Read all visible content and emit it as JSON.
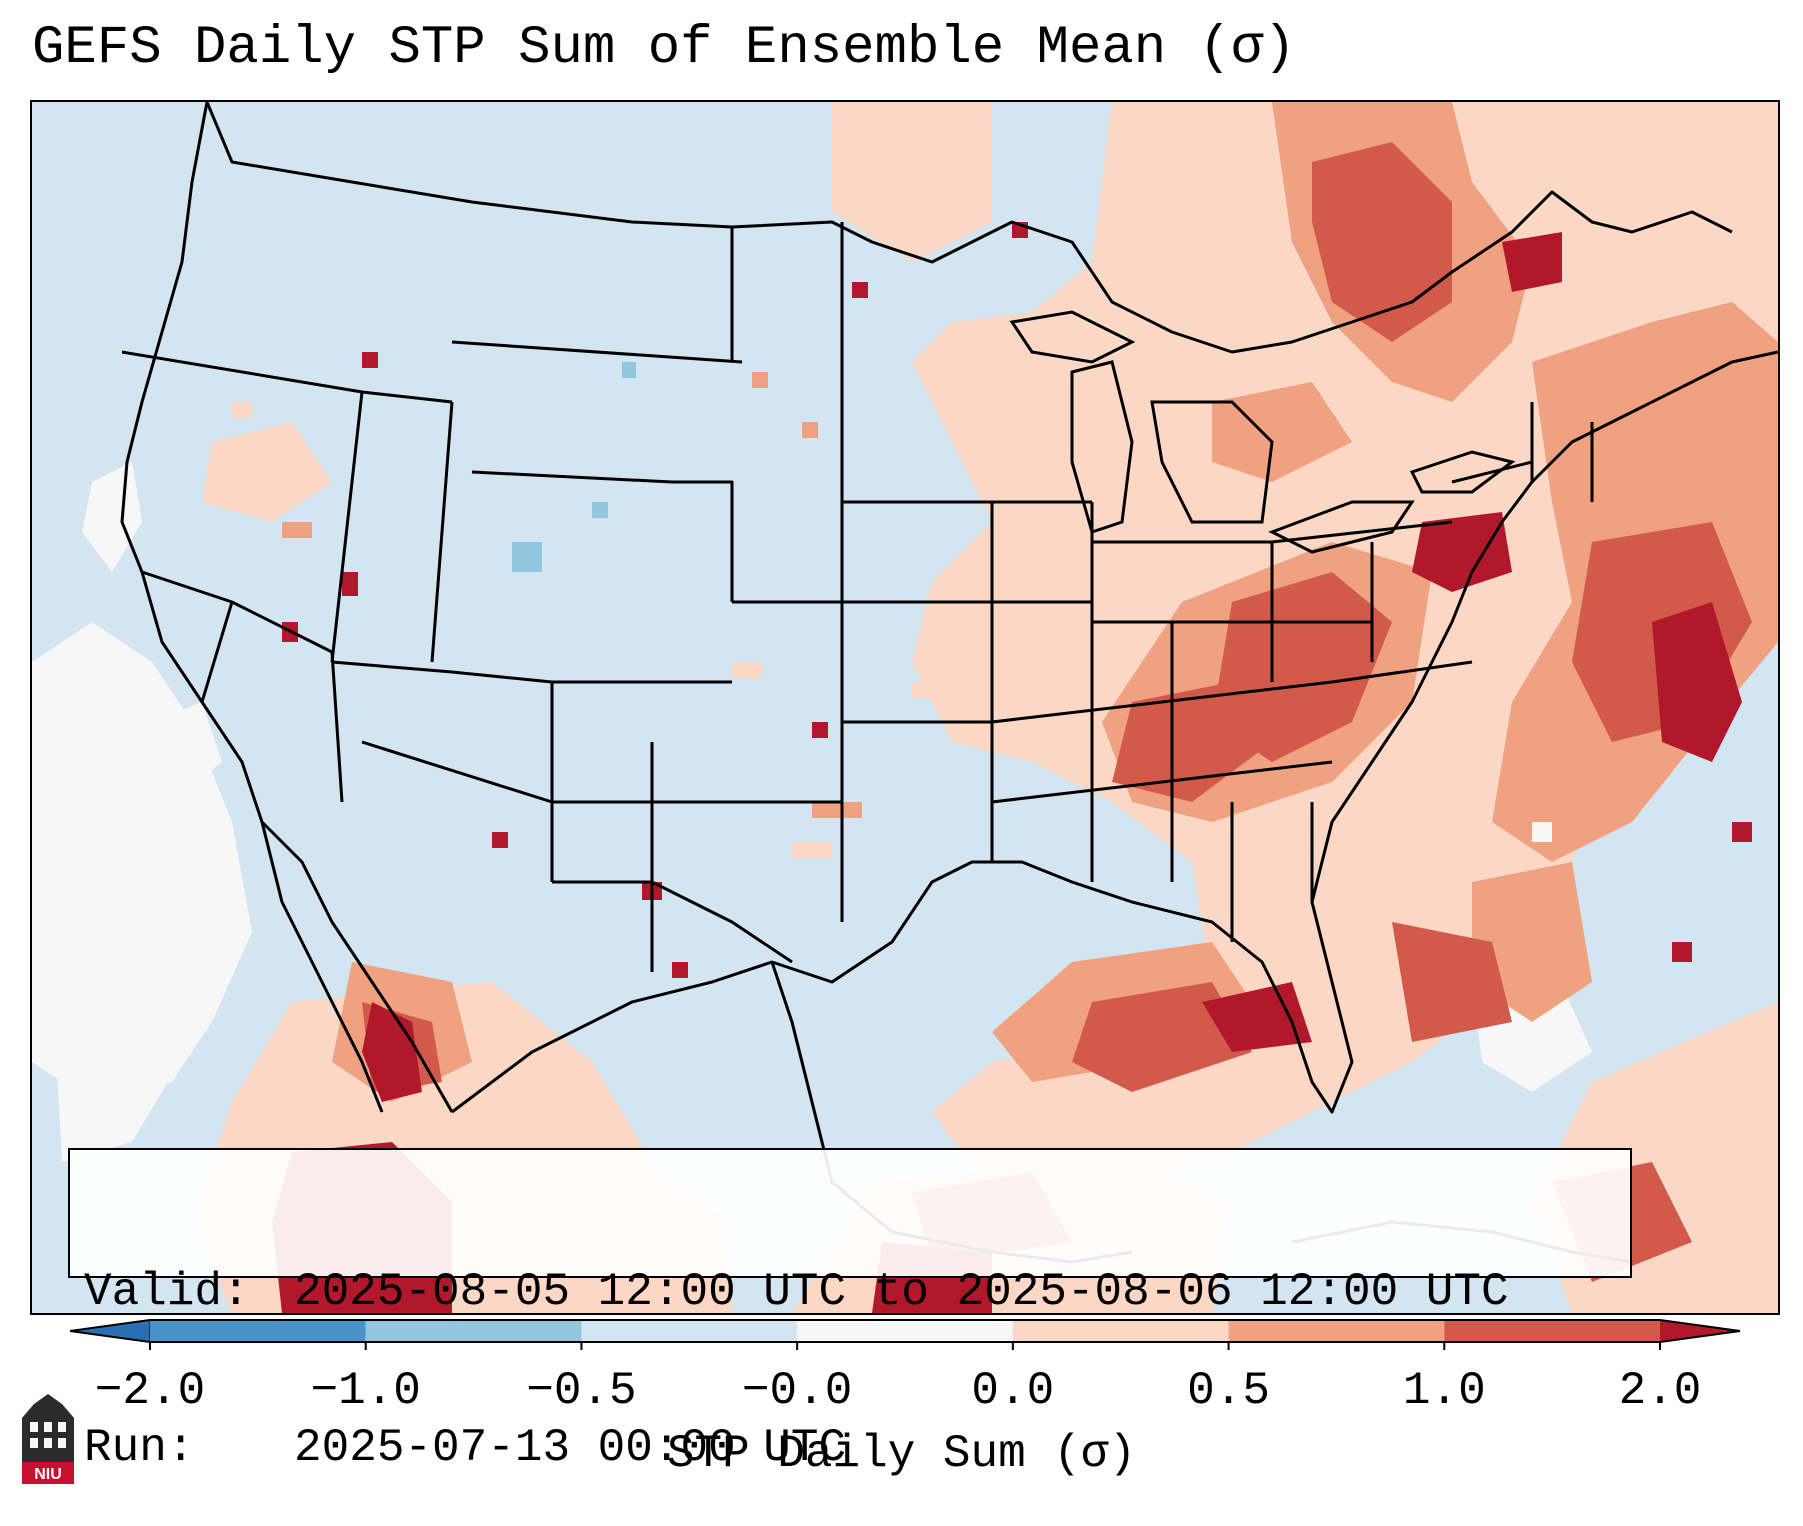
{
  "title": "GEFS Daily STP Sum of Ensemble Mean (σ)",
  "info": {
    "valid_label": "Valid:",
    "valid_value": "2025-08-05 12:00 UTC to 2025-08-06 12:00 UTC",
    "run_label": "Run:",
    "run_value": "2025-07-13 00:00 UTC"
  },
  "colorbar": {
    "label": "STP Daily Sum (σ)",
    "ticks": [
      "−2.0",
      "−1.0",
      "−0.5",
      "−0.0",
      "0.0",
      "0.5",
      "1.0",
      "2.0"
    ],
    "bins": [
      {
        "range": "< -2.0",
        "color": "#2a6fb3"
      },
      {
        "range": "-2.0 to -1.0",
        "color": "#4a93c6"
      },
      {
        "range": "-1.0 to -0.5",
        "color": "#92c5de"
      },
      {
        "range": "-0.5 to -0.0",
        "color": "#d2e5f0"
      },
      {
        "range": "-0.0 to 0.0",
        "color": "#f7f7f7"
      },
      {
        "range": "0.0 to 0.5",
        "color": "#fbd8c5"
      },
      {
        "range": "0.5 to 1.0",
        "color": "#f0a17f"
      },
      {
        "range": "1.0 to 2.0",
        "color": "#d15a4a"
      },
      {
        "range": "> 2.0",
        "color": "#b2182b"
      }
    ]
  },
  "map": {
    "region": "Contiguous United States",
    "background_color": "#d2e5f0",
    "signal_regions": [
      {
        "area": "Mid-Atlantic / Virginia",
        "level": "1.0 to 2.0"
      },
      {
        "area": "Western Atlantic offshore",
        "level": "> 2.0"
      },
      {
        "area": "Gulf Coast",
        "level": "1.0 to 2.0"
      },
      {
        "area": "Quebec / Northeast",
        "level": "0.5 to 1.0"
      },
      {
        "area": "Northern Mexico (Sierra Madre)",
        "level": "> 2.0"
      },
      {
        "area": "Pacific offshore",
        "level": "-0.0 to 0.0"
      }
    ]
  },
  "logo": {
    "text": "NIU",
    "color": "#c8102e"
  }
}
